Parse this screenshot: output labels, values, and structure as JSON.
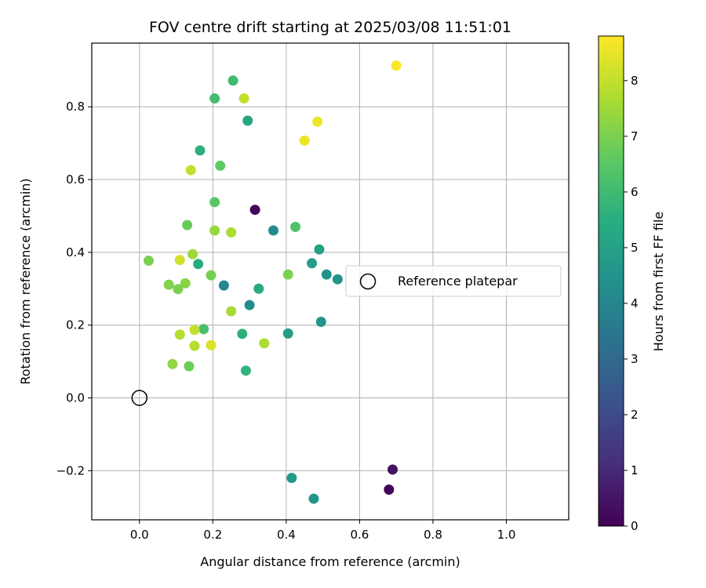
{
  "chart_data": {
    "type": "scatter",
    "title": "FOV centre drift starting at 2025/03/08 11:51:01",
    "xlabel": "Angular distance from reference (arcmin)",
    "ylabel": "Rotation from reference (arcmin)",
    "xlim": [
      -0.13,
      1.17
    ],
    "ylim": [
      -0.335,
      0.975
    ],
    "xticks": [
      0.0,
      0.2,
      0.4,
      0.6,
      0.8,
      1.0
    ],
    "xtick_labels": [
      "0.0",
      "0.2",
      "0.4",
      "0.6",
      "0.8",
      "1.0"
    ],
    "yticks": [
      -0.2,
      0.0,
      0.2,
      0.4,
      0.6,
      0.8
    ],
    "ytick_labels": [
      "−0.2",
      "0.0",
      "0.2",
      "0.4",
      "0.6",
      "0.8"
    ],
    "grid": true,
    "colormap": "viridis",
    "colorbar": {
      "label": "Hours from first FF file",
      "range": [
        0,
        8.8
      ],
      "ticks": [
        0,
        1,
        2,
        3,
        4,
        5,
        6,
        7,
        8
      ],
      "tick_labels": [
        "0",
        "1",
        "2",
        "3",
        "4",
        "5",
        "6",
        "7",
        "8"
      ]
    },
    "reference": {
      "x": 0.0,
      "y": 0.0,
      "label": "Reference platepar"
    },
    "legend_position": "center-right",
    "points": [
      {
        "x": 0.315,
        "y": 0.517,
        "hours": 0.1
      },
      {
        "x": 0.69,
        "y": -0.197,
        "hours": 0.4
      },
      {
        "x": 0.68,
        "y": -0.252,
        "hours": 0.1
      },
      {
        "x": 0.23,
        "y": 0.309,
        "hours": 4.0
      },
      {
        "x": 0.365,
        "y": 0.46,
        "hours": 4.2
      },
      {
        "x": 0.3,
        "y": 0.255,
        "hours": 4.3
      },
      {
        "x": 0.495,
        "y": 0.209,
        "hours": 4.6
      },
      {
        "x": 0.405,
        "y": 0.177,
        "hours": 4.8
      },
      {
        "x": 0.415,
        "y": -0.22,
        "hours": 4.7
      },
      {
        "x": 0.475,
        "y": -0.277,
        "hours": 4.6
      },
      {
        "x": 0.54,
        "y": 0.326,
        "hours": 4.5
      },
      {
        "x": 0.51,
        "y": 0.339,
        "hours": 4.4
      },
      {
        "x": 0.47,
        "y": 0.37,
        "hours": 4.8
      },
      {
        "x": 0.49,
        "y": 0.408,
        "hours": 5.0
      },
      {
        "x": 0.295,
        "y": 0.762,
        "hours": 5.2
      },
      {
        "x": 0.325,
        "y": 0.3,
        "hours": 5.3
      },
      {
        "x": 0.16,
        "y": 0.368,
        "hours": 5.4
      },
      {
        "x": 0.28,
        "y": 0.176,
        "hours": 5.6
      },
      {
        "x": 0.29,
        "y": 0.075,
        "hours": 5.7
      },
      {
        "x": 0.165,
        "y": 0.68,
        "hours": 5.6
      },
      {
        "x": 0.255,
        "y": 0.872,
        "hours": 6.0
      },
      {
        "x": 0.205,
        "y": 0.823,
        "hours": 6.1
      },
      {
        "x": 0.175,
        "y": 0.189,
        "hours": 6.2
      },
      {
        "x": 0.425,
        "y": 0.47,
        "hours": 6.3
      },
      {
        "x": 0.205,
        "y": 0.538,
        "hours": 6.5
      },
      {
        "x": 0.13,
        "y": 0.475,
        "hours": 6.7
      },
      {
        "x": 0.22,
        "y": 0.638,
        "hours": 6.6
      },
      {
        "x": 0.135,
        "y": 0.087,
        "hours": 6.8
      },
      {
        "x": 0.195,
        "y": 0.337,
        "hours": 6.9
      },
      {
        "x": 0.405,
        "y": 0.339,
        "hours": 7.0
      },
      {
        "x": 0.025,
        "y": 0.377,
        "hours": 7.0
      },
      {
        "x": 0.08,
        "y": 0.311,
        "hours": 7.1
      },
      {
        "x": 0.105,
        "y": 0.299,
        "hours": 7.0
      },
      {
        "x": 0.125,
        "y": 0.315,
        "hours": 7.2
      },
      {
        "x": 0.09,
        "y": 0.093,
        "hours": 7.3
      },
      {
        "x": 0.205,
        "y": 0.46,
        "hours": 7.4
      },
      {
        "x": 0.145,
        "y": 0.395,
        "hours": 7.5
      },
      {
        "x": 0.25,
        "y": 0.238,
        "hours": 7.6
      },
      {
        "x": 0.34,
        "y": 0.15,
        "hours": 7.7
      },
      {
        "x": 0.25,
        "y": 0.455,
        "hours": 7.7
      },
      {
        "x": 0.11,
        "y": 0.174,
        "hours": 7.8
      },
      {
        "x": 0.15,
        "y": 0.143,
        "hours": 7.8
      },
      {
        "x": 0.15,
        "y": 0.187,
        "hours": 8.0
      },
      {
        "x": 0.14,
        "y": 0.626,
        "hours": 8.0
      },
      {
        "x": 0.285,
        "y": 0.823,
        "hours": 8.0
      },
      {
        "x": 0.11,
        "y": 0.379,
        "hours": 8.2
      },
      {
        "x": 0.195,
        "y": 0.145,
        "hours": 8.3
      },
      {
        "x": 0.45,
        "y": 0.707,
        "hours": 8.6
      },
      {
        "x": 0.485,
        "y": 0.759,
        "hours": 8.6
      },
      {
        "x": 0.7,
        "y": 0.913,
        "hours": 8.7
      }
    ]
  }
}
